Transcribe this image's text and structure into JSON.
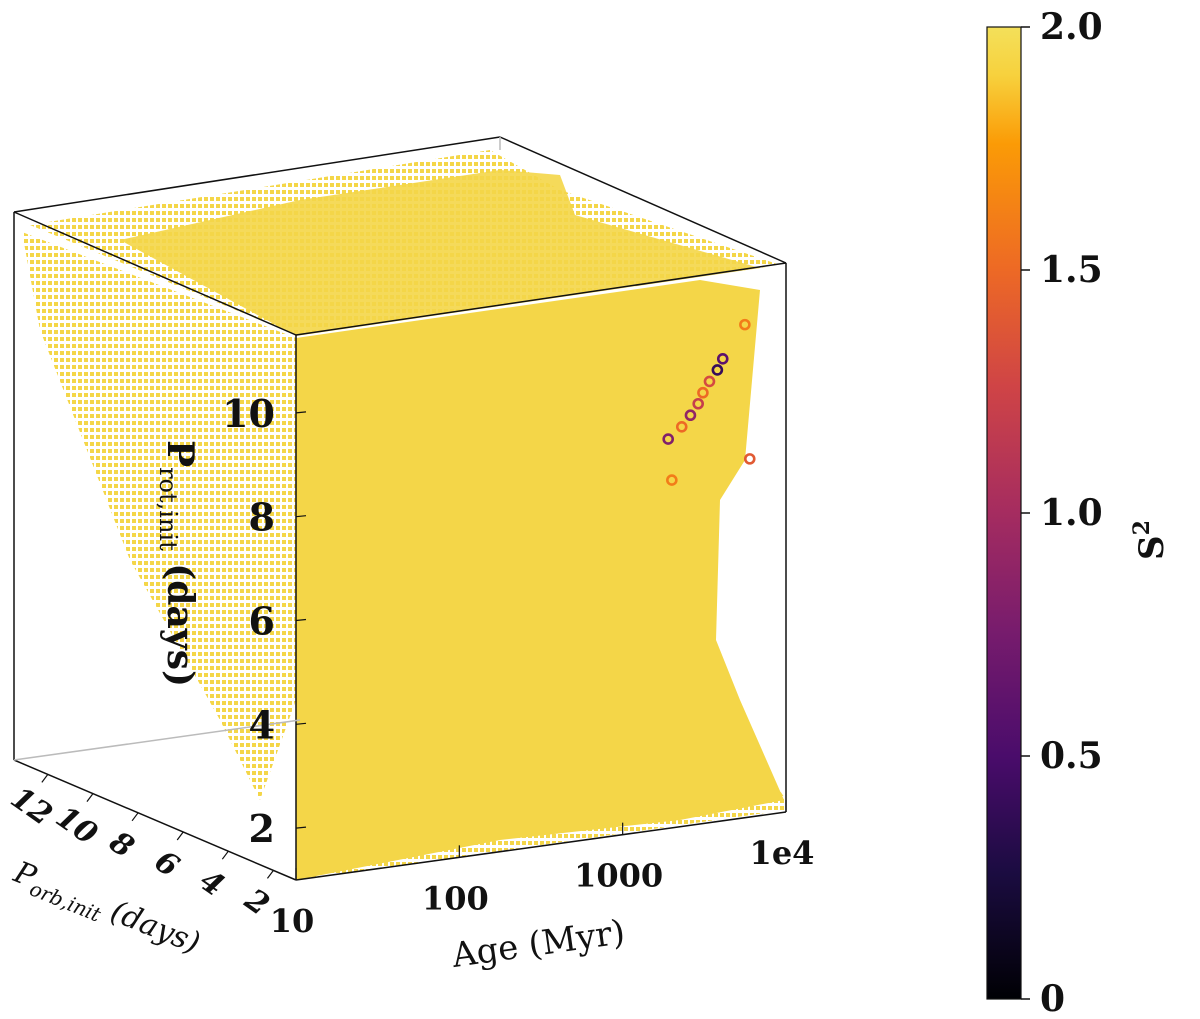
{
  "chart_data": {
    "type": "scatter",
    "projection": "3d",
    "title": "",
    "x_axis": {
      "name": "Age",
      "label": "Age (Myr)",
      "scale": "log",
      "range": [
        10,
        10000
      ],
      "ticks": [
        {
          "value": 10,
          "label": "10"
        },
        {
          "value": 100,
          "label": "100"
        },
        {
          "value": 1000,
          "label": "1000"
        },
        {
          "value": 10000,
          "label": "1e4"
        }
      ]
    },
    "y_axis": {
      "name": "P_orb,init",
      "label_main": "P",
      "label_sub": "orb,init",
      "label_tail": " (days)",
      "range": [
        1,
        13.5
      ],
      "ticks": [
        {
          "value": 2,
          "label": "2"
        },
        {
          "value": 4,
          "label": "4"
        },
        {
          "value": 6,
          "label": "6"
        },
        {
          "value": 8,
          "label": "8"
        },
        {
          "value": 10,
          "label": "10"
        },
        {
          "value": 12,
          "label": "12"
        }
      ]
    },
    "z_axis": {
      "name": "P_rot,init",
      "label_main": "P",
      "label_sub": "rot,init",
      "label_tail": " (days)",
      "range": [
        1,
        11.5
      ],
      "ticks": [
        {
          "value": 2,
          "label": "2"
        },
        {
          "value": 4,
          "label": "4"
        },
        {
          "value": 6,
          "label": "6"
        },
        {
          "value": 8,
          "label": "8"
        },
        {
          "value": 10,
          "label": "10"
        }
      ]
    },
    "colorbar": {
      "label": "S",
      "label_sup": "2",
      "range": [
        0,
        2.0
      ],
      "colormap": "inferno",
      "ticks": [
        {
          "value": 0,
          "label": "0"
        },
        {
          "value": 0.5,
          "label": "0.5"
        },
        {
          "value": 1.0,
          "label": "1.0"
        },
        {
          "value": 1.5,
          "label": "1.5"
        },
        {
          "value": 2.0,
          "label": "2.0"
        }
      ]
    },
    "background_fill_value": 2.0,
    "highlighted_points": [
      {
        "age": 5600,
        "p_orb": 2.0,
        "p_rot": 10.5,
        "s2": 1.6
      },
      {
        "age": 4100,
        "p_orb": 2.0,
        "p_rot": 9.9,
        "s2": 0.6
      },
      {
        "age": 3800,
        "p_orb": 2.0,
        "p_rot": 9.7,
        "s2": 0.4
      },
      {
        "age": 3400,
        "p_orb": 2.0,
        "p_rot": 9.5,
        "s2": 1.3
      },
      {
        "age": 3100,
        "p_orb": 2.0,
        "p_rot": 9.3,
        "s2": 1.5
      },
      {
        "age": 2900,
        "p_orb": 2.0,
        "p_rot": 9.1,
        "s2": 1.2
      },
      {
        "age": 2600,
        "p_orb": 2.0,
        "p_rot": 8.9,
        "s2": 0.9
      },
      {
        "age": 2300,
        "p_orb": 2.0,
        "p_rot": 8.7,
        "s2": 1.5
      },
      {
        "age": 1900,
        "p_orb": 2.0,
        "p_rot": 8.5,
        "s2": 0.8
      },
      {
        "age": 2000,
        "p_orb": 2.0,
        "p_rot": 7.7,
        "s2": 1.6
      },
      {
        "age": 6000,
        "p_orb": 2.0,
        "p_rot": 7.9,
        "s2": 1.4
      }
    ]
  }
}
